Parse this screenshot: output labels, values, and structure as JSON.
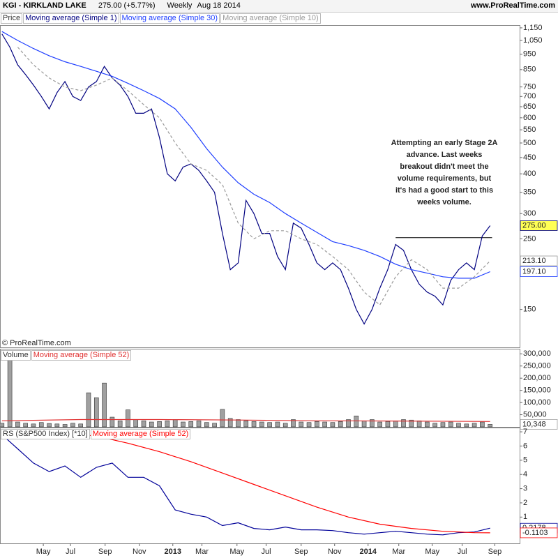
{
  "header": {
    "title": "KGI - KIRKLAND LAKE",
    "price": "275.00 (+5.77%)",
    "period": "Weekly",
    "date": "Aug 18 2014",
    "site": "www.ProRealTime.com"
  },
  "copyright": "© ProRealTime.com",
  "chart_data": [
    {
      "type": "line",
      "title": "Price",
      "log": true,
      "xlim": [
        -0.5,
        131.5
      ],
      "ylim": [
        114,
        1173
      ],
      "yticks": [
        {
          "value": 1150,
          "label": "1,150"
        },
        {
          "value": 1050,
          "label": "1,050"
        },
        950,
        850,
        750,
        700,
        650,
        600,
        550,
        500,
        450,
        400,
        350,
        300,
        250,
        150
      ],
      "series": [
        {
          "name": "Moving average (Simple 1)",
          "color": "#000080",
          "highlight": true,
          "last_label": "275.00",
          "x": [
            0,
            2,
            4,
            6,
            8,
            10,
            12,
            14,
            16,
            18,
            20,
            22,
            24,
            26,
            28,
            30,
            32,
            34,
            36,
            38,
            40,
            42,
            44,
            46,
            48,
            50,
            52,
            54,
            56,
            58,
            60,
            62,
            64,
            66,
            68,
            70,
            72,
            74,
            76,
            78,
            80,
            82,
            84,
            86,
            88,
            90,
            92,
            94,
            96,
            98,
            100,
            102,
            104,
            106,
            108,
            110,
            112,
            114,
            116,
            118,
            120,
            122,
            124
          ],
          "values": [
            1100,
            1000,
            880,
            820,
            760,
            700,
            640,
            720,
            780,
            700,
            680,
            750,
            780,
            870,
            800,
            760,
            700,
            620,
            620,
            640,
            520,
            400,
            380,
            420,
            430,
            410,
            380,
            350,
            260,
            200,
            210,
            330,
            300,
            260,
            260,
            220,
            200,
            280,
            270,
            240,
            210,
            200,
            210,
            200,
            175,
            150,
            135,
            150,
            175,
            200,
            240,
            230,
            200,
            180,
            170,
            165,
            155,
            185,
            200,
            210,
            200,
            255,
            275
          ]
        },
        {
          "name": "Moving average (Simple 30)",
          "color": "#1f3fff",
          "last_label": "197.10",
          "x": [
            0,
            4,
            8,
            12,
            16,
            20,
            24,
            28,
            32,
            36,
            40,
            44,
            48,
            52,
            56,
            60,
            64,
            68,
            72,
            76,
            80,
            84,
            88,
            92,
            96,
            100,
            104,
            108,
            112,
            116,
            120,
            124
          ],
          "values": [
            1120,
            1050,
            990,
            940,
            900,
            870,
            840,
            810,
            770,
            730,
            690,
            640,
            560,
            480,
            420,
            375,
            345,
            325,
            300,
            280,
            262,
            245,
            238,
            230,
            220,
            208,
            200,
            195,
            190,
            188,
            188,
            197.1
          ]
        },
        {
          "name": "Moving average (Simple 10)",
          "color": "#9a9a9a",
          "dashed": true,
          "last_label": "213.10",
          "x": [
            4,
            8,
            12,
            16,
            20,
            24,
            28,
            32,
            36,
            40,
            44,
            48,
            52,
            56,
            60,
            64,
            68,
            72,
            76,
            80,
            84,
            88,
            92,
            96,
            100,
            104,
            108,
            112,
            116,
            120,
            124
          ],
          "values": [
            1000,
            880,
            800,
            750,
            730,
            760,
            800,
            730,
            660,
            600,
            500,
            430,
            410,
            370,
            280,
            250,
            265,
            265,
            250,
            240,
            220,
            200,
            170,
            155,
            190,
            215,
            200,
            175,
            175,
            190,
            213.1
          ]
        }
      ],
      "resistance": {
        "value": 252,
        "x": [
          100,
          124.5
        ]
      },
      "annotation": [
        "Attempting an early Stage 2A",
        "advance. Last weeks",
        "breakout didn't meet the",
        "volume requirements, but",
        "it's had a good start to this",
        "weeks volume."
      ]
    },
    {
      "type": "bar",
      "title": "Volume",
      "xlim": [
        -0.5,
        131.5
      ],
      "ylim": [
        0,
        318000
      ],
      "yticks": [
        {
          "value": 300000,
          "label": "300,000"
        },
        {
          "value": 250000,
          "label": "250,000"
        },
        {
          "value": 200000,
          "label": "200,000"
        },
        {
          "value": 150000,
          "label": "150,000"
        },
        {
          "value": 100000,
          "label": "100,000"
        },
        {
          "value": 50000,
          "label": "50,000"
        }
      ],
      "series": [
        {
          "type": "bar",
          "color": "#a0a0a0",
          "last_label": "10,348",
          "x": [
            0,
            2,
            4,
            6,
            8,
            10,
            12,
            14,
            16,
            18,
            20,
            22,
            24,
            26,
            28,
            30,
            32,
            34,
            36,
            38,
            40,
            42,
            44,
            46,
            48,
            50,
            52,
            54,
            56,
            58,
            60,
            62,
            64,
            66,
            68,
            70,
            72,
            74,
            76,
            78,
            80,
            82,
            84,
            86,
            88,
            90,
            92,
            94,
            96,
            98,
            100,
            102,
            104,
            106,
            108,
            110,
            112,
            114,
            116,
            118,
            120,
            122,
            124
          ],
          "values": [
            15000,
            310000,
            20000,
            15000,
            12000,
            18000,
            14000,
            12000,
            10000,
            15000,
            12000,
            140000,
            120000,
            180000,
            40000,
            25000,
            70000,
            30000,
            25000,
            20000,
            22000,
            25000,
            30000,
            20000,
            22000,
            25000,
            18000,
            15000,
            72000,
            35000,
            30000,
            25000,
            22000,
            20000,
            18000,
            20000,
            15000,
            30000,
            20000,
            18000,
            22000,
            20000,
            18000,
            22000,
            30000,
            45000,
            25000,
            30000,
            20000,
            22000,
            25000,
            30000,
            28000,
            25000,
            20000,
            15000,
            18000,
            20000,
            15000,
            12000,
            15000,
            20000,
            10348
          ]
        },
        {
          "type": "line",
          "name": "Moving average (Simple 52)",
          "color": "#e03030",
          "x": [
            0,
            20,
            40,
            60,
            80,
            100,
            124
          ],
          "values": [
            25000,
            30000,
            30000,
            28000,
            25000,
            24000,
            22000
          ]
        }
      ]
    },
    {
      "type": "line",
      "title": "RS (S&P500 Index) [*10]",
      "xlim": [
        -0.5,
        131.5
      ],
      "ylim": [
        -0.85,
        7.25
      ],
      "yticks": [
        1,
        2,
        3,
        4,
        5,
        6,
        7
      ],
      "xticks": [
        {
          "value": 10.5,
          "label": "May"
        },
        {
          "value": 17.4,
          "label": "Jul"
        },
        {
          "value": 26.2,
          "label": "Sep"
        },
        {
          "value": 34.9,
          "label": "Nov"
        },
        {
          "value": 43.4,
          "label": "2013"
        },
        {
          "value": 50.8,
          "label": "Mar"
        },
        {
          "value": 59.7,
          "label": "May"
        },
        {
          "value": 67.1,
          "label": "Jul"
        },
        {
          "value": 76,
          "label": "Sep"
        },
        {
          "value": 84.5,
          "label": "Nov"
        },
        {
          "value": 93,
          "label": "2014"
        },
        {
          "value": 100.8,
          "label": "Mar"
        },
        {
          "value": 109.3,
          "label": "May"
        },
        {
          "value": 116.9,
          "label": "Jul"
        },
        {
          "value": 125.2,
          "label": "Sep"
        }
      ],
      "series": [
        {
          "color": "#000099",
          "last_label": "0.2178",
          "x": [
            0,
            4,
            8,
            12,
            16,
            20,
            24,
            28,
            32,
            36,
            40,
            44,
            48,
            52,
            56,
            60,
            64,
            68,
            72,
            76,
            80,
            84,
            88,
            92,
            96,
            100,
            104,
            108,
            112,
            116,
            120,
            124
          ],
          "values": [
            6.8,
            5.8,
            4.8,
            4.2,
            4.6,
            3.8,
            4.5,
            4.8,
            3.8,
            3.8,
            3.2,
            1.5,
            1.2,
            1.0,
            0.4,
            0.6,
            0.2,
            0.1,
            0.3,
            0.1,
            0.1,
            0.05,
            -0.1,
            -0.2,
            -0.1,
            0.0,
            -0.1,
            -0.2,
            -0.25,
            -0.1,
            -0.05,
            0.2178
          ]
        },
        {
          "name": "Moving average (Simple 52)",
          "color": "#ff0000",
          "last_label": "-0.1103",
          "x": [
            16,
            24,
            32,
            40,
            48,
            56,
            64,
            72,
            80,
            88,
            96,
            104,
            112,
            120,
            124
          ],
          "values": [
            6.9,
            6.7,
            6.2,
            5.6,
            4.9,
            4.1,
            3.3,
            2.5,
            1.7,
            1.0,
            0.5,
            0.2,
            0.0,
            -0.1,
            -0.1103
          ]
        }
      ]
    }
  ]
}
